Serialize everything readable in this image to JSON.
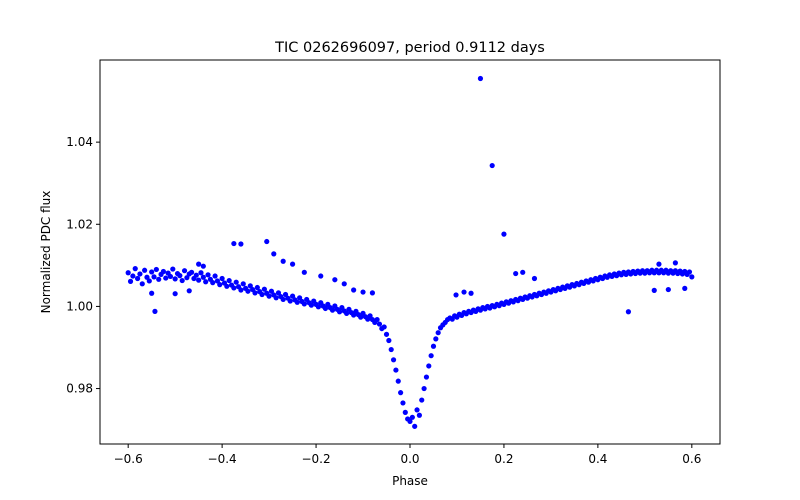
{
  "chart_data": {
    "type": "scatter",
    "title": "TIC 0262696097, period 0.9112 days",
    "xlabel": "Phase",
    "ylabel": "Normalized PDC flux",
    "xlim": [
      -0.66,
      0.66
    ],
    "ylim": [
      0.9665,
      1.06
    ],
    "xticks": [
      -0.6,
      -0.4,
      -0.2,
      0.0,
      0.2,
      0.4,
      0.6
    ],
    "xtick_labels": [
      "−0.6",
      "−0.4",
      "−0.2",
      "0.0",
      "0.2",
      "0.4",
      "0.6"
    ],
    "yticks": [
      0.98,
      1.0,
      1.02,
      1.04
    ],
    "ytick_labels": [
      "0.98",
      "1.00",
      "1.02",
      "1.04"
    ],
    "grid": false,
    "marker_color": "#0000ff",
    "series": [
      {
        "points": [
          [
            -0.6,
            1.0082
          ],
          [
            -0.595,
            1.0061
          ],
          [
            -0.59,
            1.0074
          ],
          [
            -0.585,
            1.0092
          ],
          [
            -0.58,
            1.0068
          ],
          [
            -0.575,
            1.0079
          ],
          [
            -0.57,
            1.0055
          ],
          [
            -0.565,
            1.0088
          ],
          [
            -0.56,
            1.0071
          ],
          [
            -0.555,
            1.0062
          ],
          [
            -0.55,
            1.0084
          ],
          [
            -0.545,
            1.0072
          ],
          [
            -0.54,
            1.009
          ],
          [
            -0.535,
            1.0066
          ],
          [
            -0.53,
            1.0078
          ],
          [
            -0.525,
            1.0085
          ],
          [
            -0.52,
            1.0069
          ],
          [
            -0.515,
            1.0081
          ],
          [
            -0.51,
            1.0073
          ],
          [
            -0.505,
            1.0091
          ],
          [
            -0.5,
            1.0067
          ],
          [
            -0.495,
            1.008
          ],
          [
            -0.49,
            1.0075
          ],
          [
            -0.485,
            1.0063
          ],
          [
            -0.48,
            1.0087
          ],
          [
            -0.475,
            1.007
          ],
          [
            -0.47,
            1.0079
          ],
          [
            -0.465,
            1.0083
          ],
          [
            -0.46,
            1.0068
          ],
          [
            -0.455,
            1.0076
          ],
          [
            -0.45,
            1.0064
          ],
          [
            -0.445,
            1.0082
          ],
          [
            -0.44,
            1.0071
          ],
          [
            -0.435,
            1.006
          ],
          [
            -0.43,
            1.0077
          ],
          [
            -0.425,
            1.0066
          ],
          [
            -0.42,
            1.0058
          ],
          [
            -0.415,
            1.0074
          ],
          [
            -0.41,
            1.0062
          ],
          [
            -0.405,
            1.0053
          ],
          [
            -0.4,
            1.0068
          ],
          [
            -0.395,
            1.0057
          ],
          [
            -0.39,
            1.0049
          ],
          [
            -0.385,
            1.0063
          ],
          [
            -0.38,
            1.0052
          ],
          [
            -0.375,
            1.0045
          ],
          [
            -0.37,
            1.0059
          ],
          [
            -0.365,
            1.0048
          ],
          [
            -0.36,
            1.004
          ],
          [
            -0.355,
            1.0055
          ],
          [
            -0.35,
            1.0044
          ],
          [
            -0.345,
            1.0037
          ],
          [
            -0.34,
            1.005
          ],
          [
            -0.335,
            1.0041
          ],
          [
            -0.33,
            1.0033
          ],
          [
            -0.325,
            1.0046
          ],
          [
            -0.32,
            1.0036
          ],
          [
            -0.315,
            1.0029
          ],
          [
            -0.31,
            1.0042
          ],
          [
            -0.305,
            1.0032
          ],
          [
            -0.3,
            1.0025
          ],
          [
            -0.295,
            1.0037
          ],
          [
            -0.29,
            1.0028
          ],
          [
            -0.285,
            1.0021
          ],
          [
            -0.28,
            1.0033
          ],
          [
            -0.275,
            1.0024
          ],
          [
            -0.27,
            1.0017
          ],
          [
            -0.265,
            1.0029
          ],
          [
            -0.26,
            1.002
          ],
          [
            -0.255,
            1.0013
          ],
          [
            -0.25,
            1.0025
          ],
          [
            -0.245,
            1.0016
          ],
          [
            -0.24,
            1.001
          ],
          [
            -0.235,
            1.0021
          ],
          [
            -0.23,
            1.0012
          ],
          [
            -0.225,
            1.0006
          ],
          [
            -0.22,
            1.0017
          ],
          [
            -0.215,
            1.0009
          ],
          [
            -0.21,
            1.0003
          ],
          [
            -0.205,
            1.0013
          ],
          [
            -0.2,
            1.0005
          ],
          [
            -0.195,
            0.9999
          ],
          [
            -0.19,
            1.0009
          ],
          [
            -0.185,
            1.0001
          ],
          [
            -0.18,
            0.9995
          ],
          [
            -0.175,
            1.0005
          ],
          [
            -0.17,
            0.9997
          ],
          [
            -0.165,
            0.9991
          ],
          [
            -0.16,
            1.0001
          ],
          [
            -0.155,
            0.9993
          ],
          [
            -0.15,
            0.9987
          ],
          [
            -0.145,
            0.9997
          ],
          [
            -0.14,
            0.9989
          ],
          [
            -0.135,
            0.9983
          ],
          [
            -0.13,
            0.9993
          ],
          [
            -0.125,
            0.9985
          ],
          [
            -0.12,
            0.9979
          ],
          [
            -0.115,
            0.9988
          ],
          [
            -0.11,
            0.998
          ],
          [
            -0.105,
            0.9974
          ],
          [
            -0.1,
            0.9983
          ],
          [
            -0.095,
            0.9975
          ],
          [
            -0.09,
            0.9969
          ],
          [
            -0.085,
            0.9977
          ],
          [
            -0.08,
            0.9968
          ],
          [
            -0.075,
            0.9961
          ],
          [
            -0.07,
            0.9968
          ],
          [
            -0.065,
            0.9957
          ],
          [
            -0.06,
            0.9946
          ],
          [
            -0.055,
            0.995
          ],
          [
            -0.05,
            0.9932
          ],
          [
            -0.045,
            0.9917
          ],
          [
            -0.04,
            0.9895
          ],
          [
            -0.035,
            0.987
          ],
          [
            -0.03,
            0.9845
          ],
          [
            -0.025,
            0.9818
          ],
          [
            -0.02,
            0.979
          ],
          [
            -0.015,
            0.9765
          ],
          [
            -0.01,
            0.9742
          ],
          [
            -0.005,
            0.9726
          ],
          [
            0.0,
            0.972
          ],
          [
            0.005,
            0.973
          ],
          [
            0.01,
            0.9708
          ],
          [
            0.015,
            0.9748
          ],
          [
            0.02,
            0.9735
          ],
          [
            0.025,
            0.9772
          ],
          [
            0.03,
            0.98
          ],
          [
            0.035,
            0.9828
          ],
          [
            0.04,
            0.9855
          ],
          [
            0.045,
            0.988
          ],
          [
            0.05,
            0.9903
          ],
          [
            0.055,
            0.9921
          ],
          [
            0.06,
            0.9936
          ],
          [
            0.065,
            0.9948
          ],
          [
            0.07,
            0.9955
          ],
          [
            0.075,
            0.9961
          ],
          [
            0.08,
            0.9968
          ],
          [
            0.085,
            0.9972
          ],
          [
            0.09,
            0.9969
          ],
          [
            0.095,
            0.9977
          ],
          [
            0.1,
            0.9974
          ],
          [
            0.105,
            0.9981
          ],
          [
            0.11,
            0.9978
          ],
          [
            0.115,
            0.9985
          ],
          [
            0.12,
            0.9982
          ],
          [
            0.125,
            0.9988
          ],
          [
            0.13,
            0.9985
          ],
          [
            0.135,
            0.9991
          ],
          [
            0.14,
            0.9988
          ],
          [
            0.145,
            0.9994
          ],
          [
            0.15,
            0.9991
          ],
          [
            0.155,
            0.9997
          ],
          [
            0.16,
            0.9994
          ],
          [
            0.165,
            1.0
          ],
          [
            0.17,
            0.9996
          ],
          [
            0.175,
            1.0002
          ],
          [
            0.18,
            0.9999
          ],
          [
            0.185,
            1.0005
          ],
          [
            0.19,
            1.0002
          ],
          [
            0.195,
            1.0008
          ],
          [
            0.2,
            1.0005
          ],
          [
            0.205,
            1.0011
          ],
          [
            0.21,
            1.0008
          ],
          [
            0.215,
            1.0014
          ],
          [
            0.22,
            1.0011
          ],
          [
            0.225,
            1.0017
          ],
          [
            0.23,
            1.0014
          ],
          [
            0.235,
            1.002
          ],
          [
            0.24,
            1.0017
          ],
          [
            0.245,
            1.0023
          ],
          [
            0.25,
            1.002
          ],
          [
            0.255,
            1.0026
          ],
          [
            0.26,
            1.0023
          ],
          [
            0.265,
            1.0029
          ],
          [
            0.27,
            1.0026
          ],
          [
            0.275,
            1.0032
          ],
          [
            0.28,
            1.0029
          ],
          [
            0.285,
            1.0035
          ],
          [
            0.29,
            1.0032
          ],
          [
            0.295,
            1.0038
          ],
          [
            0.3,
            1.0035
          ],
          [
            0.305,
            1.0041
          ],
          [
            0.31,
            1.0038
          ],
          [
            0.315,
            1.0044
          ],
          [
            0.32,
            1.0041
          ],
          [
            0.325,
            1.0047
          ],
          [
            0.33,
            1.0044
          ],
          [
            0.335,
            1.005
          ],
          [
            0.34,
            1.0047
          ],
          [
            0.345,
            1.0053
          ],
          [
            0.35,
            1.005
          ],
          [
            0.355,
            1.0056
          ],
          [
            0.36,
            1.0053
          ],
          [
            0.365,
            1.0059
          ],
          [
            0.37,
            1.0056
          ],
          [
            0.375,
            1.0062
          ],
          [
            0.38,
            1.0059
          ],
          [
            0.385,
            1.0065
          ],
          [
            0.39,
            1.0062
          ],
          [
            0.395,
            1.0068
          ],
          [
            0.4,
            1.0065
          ],
          [
            0.405,
            1.0071
          ],
          [
            0.41,
            1.0068
          ],
          [
            0.415,
            1.0074
          ],
          [
            0.42,
            1.0071
          ],
          [
            0.425,
            1.0077
          ],
          [
            0.43,
            1.0073
          ],
          [
            0.435,
            1.0079
          ],
          [
            0.44,
            1.0075
          ],
          [
            0.445,
            1.0081
          ],
          [
            0.45,
            1.0077
          ],
          [
            0.455,
            1.0083
          ],
          [
            0.46,
            1.0078
          ],
          [
            0.465,
            1.0084
          ],
          [
            0.47,
            1.0079
          ],
          [
            0.475,
            1.0085
          ],
          [
            0.48,
            1.008
          ],
          [
            0.485,
            1.0086
          ],
          [
            0.49,
            1.0081
          ],
          [
            0.495,
            1.0087
          ],
          [
            0.5,
            1.0081
          ],
          [
            0.505,
            1.0087
          ],
          [
            0.51,
            1.0082
          ],
          [
            0.515,
            1.0088
          ],
          [
            0.52,
            1.0082
          ],
          [
            0.525,
            1.0088
          ],
          [
            0.53,
            1.0082
          ],
          [
            0.535,
            1.0088
          ],
          [
            0.54,
            1.0082
          ],
          [
            0.545,
            1.0088
          ],
          [
            0.55,
            1.0081
          ],
          [
            0.555,
            1.0087
          ],
          [
            0.56,
            1.0081
          ],
          [
            0.565,
            1.0087
          ],
          [
            0.57,
            1.008
          ],
          [
            0.575,
            1.0086
          ],
          [
            0.58,
            1.0079
          ],
          [
            0.585,
            1.0085
          ],
          [
            0.59,
            1.0078
          ],
          [
            0.595,
            1.0084
          ],
          [
            0.6,
            1.0072
          ],
          [
            -0.543,
            0.9988
          ],
          [
            -0.375,
            1.0153
          ],
          [
            -0.36,
            1.0152
          ],
          [
            -0.305,
            1.0158
          ],
          [
            -0.29,
            1.0128
          ],
          [
            -0.27,
            1.011
          ],
          [
            -0.25,
            1.0103
          ],
          [
            -0.225,
            1.0083
          ],
          [
            -0.19,
            1.0074
          ],
          [
            -0.16,
            1.0065
          ],
          [
            -0.14,
            1.0055
          ],
          [
            -0.12,
            1.004
          ],
          [
            -0.1,
            1.0035
          ],
          [
            -0.08,
            1.0033
          ],
          [
            0.15,
            1.0555
          ],
          [
            0.175,
            1.0343
          ],
          [
            0.2,
            1.0176
          ],
          [
            0.225,
            1.008
          ],
          [
            0.24,
            1.0083
          ],
          [
            0.265,
            1.0068
          ],
          [
            0.098,
            1.0028
          ],
          [
            0.115,
            1.0035
          ],
          [
            0.13,
            1.0032
          ],
          [
            0.465,
            0.9987
          ],
          [
            -0.47,
            1.0038
          ],
          [
            -0.5,
            1.0031
          ],
          [
            -0.55,
            1.0032
          ],
          [
            0.52,
            1.0039
          ],
          [
            0.55,
            1.0041
          ],
          [
            0.585,
            1.0044
          ],
          [
            -0.45,
            1.0103
          ],
          [
            -0.44,
            1.0098
          ],
          [
            0.53,
            1.0103
          ],
          [
            0.565,
            1.0106
          ]
        ]
      }
    ]
  }
}
